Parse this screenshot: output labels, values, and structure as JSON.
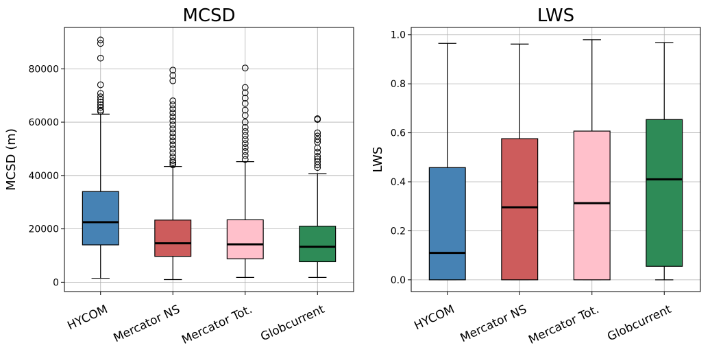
{
  "chart_data": [
    {
      "type": "box",
      "title": "MCSD",
      "xlabel": "",
      "ylabel": "MCSD (m)",
      "ylim": [
        -3500,
        95500
      ],
      "yticks": [
        0,
        20000,
        40000,
        60000,
        80000
      ],
      "ytick_labels": [
        "0",
        "20000",
        "40000",
        "60000",
        "80000"
      ],
      "grid": true,
      "categories": [
        "HYCOM",
        "Mercator NS",
        "Mercator Tot.",
        "Globcurrent"
      ],
      "colors": [
        "#4682b4",
        "#cd5c5c",
        "#ffc0cb",
        "#2e8b57"
      ],
      "boxes": [
        {
          "name": "HYCOM",
          "whislo": 1500,
          "q1": 14000,
          "med": 22500,
          "q3": 34000,
          "whishi": 63000,
          "fliers": [
            64000,
            64500,
            65500,
            66500,
            67500,
            68500,
            69500,
            70800,
            74000,
            84000,
            89500,
            90800
          ]
        },
        {
          "name": "Mercator NS",
          "whislo": 1000,
          "q1": 9700,
          "med": 14600,
          "q3": 23300,
          "whishi": 43400,
          "fliers": [
            44000,
            44800,
            45600,
            47000,
            48500,
            50000,
            51500,
            53000,
            54500,
            56000,
            57500,
            59000,
            60500,
            62000,
            63500,
            65000,
            66500,
            68000,
            75500,
            77500,
            79500
          ]
        },
        {
          "name": "Mercator Tot.",
          "whislo": 1800,
          "q1": 8800,
          "med": 14200,
          "q3": 23400,
          "whishi": 45200,
          "fliers": [
            46000,
            47500,
            49000,
            50500,
            52000,
            53500,
            55000,
            56500,
            58000,
            60000,
            62500,
            64500,
            67000,
            69000,
            71000,
            73000,
            80300
          ]
        },
        {
          "name": "Globcurrent",
          "whislo": 1800,
          "q1": 7700,
          "med": 13300,
          "q3": 21000,
          "whishi": 40700,
          "fliers": [
            43000,
            44000,
            45200,
            46200,
            47200,
            48800,
            50300,
            52500,
            53500,
            54800,
            56000,
            61000,
            61300
          ]
        }
      ]
    },
    {
      "type": "box",
      "title": "LWS",
      "xlabel": "",
      "ylabel": "LWS",
      "ylim": [
        -0.048,
        1.03
      ],
      "yticks": [
        0.0,
        0.2,
        0.4,
        0.6,
        0.8,
        1.0
      ],
      "ytick_labels": [
        "0.0",
        "0.2",
        "0.4",
        "0.6",
        "0.8",
        "1.0"
      ],
      "grid": true,
      "categories": [
        "HYCOM",
        "Mercator NS",
        "Mercator Tot.",
        "Globcurrent"
      ],
      "colors": [
        "#4682b4",
        "#cd5c5c",
        "#ffc0cb",
        "#2e8b57"
      ],
      "boxes": [
        {
          "name": "HYCOM",
          "whislo": 0.0,
          "q1": 0.0,
          "med": 0.11,
          "q3": 0.458,
          "whishi": 0.965,
          "fliers": []
        },
        {
          "name": "Mercator NS",
          "whislo": 0.0,
          "q1": 0.0,
          "med": 0.296,
          "q3": 0.576,
          "whishi": 0.962,
          "fliers": []
        },
        {
          "name": "Mercator Tot.",
          "whislo": 0.0,
          "q1": 0.0,
          "med": 0.313,
          "q3": 0.607,
          "whishi": 0.98,
          "fliers": []
        },
        {
          "name": "Globcurrent",
          "whislo": 0.0,
          "q1": 0.055,
          "med": 0.41,
          "q3": 0.654,
          "whishi": 0.968,
          "fliers": []
        }
      ]
    }
  ]
}
